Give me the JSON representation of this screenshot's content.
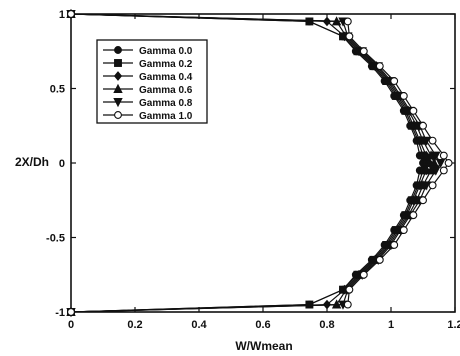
{
  "chart_data": {
    "type": "line",
    "xlabel": "W/Wmean",
    "ylabel": "2X/Dh",
    "xlim": [
      0,
      1.2
    ],
    "ylim": [
      -1,
      1
    ],
    "xticks": [
      "0",
      "0.2",
      "0.4",
      "0.6",
      "0.8",
      "1",
      "1.2"
    ],
    "yticks": [
      "1",
      "0.5",
      "0",
      "-0.5",
      "-1"
    ],
    "grid": false,
    "legend_position": "top-left",
    "y": [
      -1.0,
      -0.95,
      -0.85,
      -0.75,
      -0.65,
      -0.55,
      -0.45,
      -0.35,
      -0.25,
      -0.15,
      -0.05,
      0.0,
      0.05,
      0.15,
      0.25,
      0.35,
      0.45,
      0.55,
      0.65,
      0.75,
      0.85,
      0.95,
      1.0
    ],
    "series": [
      {
        "name": "Gamma 0.0",
        "marker": "circle-filled",
        "values": [
          0,
          0.745,
          0.85,
          0.89,
          0.94,
          0.98,
          1.01,
          1.04,
          1.06,
          1.08,
          1.09,
          1.1,
          1.09,
          1.08,
          1.06,
          1.04,
          1.01,
          0.98,
          0.94,
          0.89,
          0.85,
          0.745,
          0
        ]
      },
      {
        "name": "Gamma 0.2",
        "marker": "square-filled",
        "values": [
          0,
          0.745,
          0.85,
          0.895,
          0.945,
          0.985,
          1.015,
          1.045,
          1.065,
          1.085,
          1.1,
          1.11,
          1.1,
          1.085,
          1.065,
          1.045,
          1.015,
          0.985,
          0.945,
          0.895,
          0.85,
          0.745,
          0
        ]
      },
      {
        "name": "Gamma 0.4",
        "marker": "diamond-filled",
        "values": [
          0,
          0.8,
          0.855,
          0.9,
          0.95,
          0.99,
          1.02,
          1.05,
          1.07,
          1.09,
          1.11,
          1.12,
          1.11,
          1.09,
          1.07,
          1.05,
          1.02,
          0.99,
          0.95,
          0.9,
          0.855,
          0.8,
          0
        ]
      },
      {
        "name": "Gamma 0.6",
        "marker": "triangle-up-filled",
        "values": [
          0,
          0.83,
          0.86,
          0.905,
          0.955,
          0.995,
          1.025,
          1.055,
          1.08,
          1.1,
          1.125,
          1.135,
          1.125,
          1.1,
          1.08,
          1.055,
          1.025,
          0.995,
          0.955,
          0.905,
          0.86,
          0.83,
          0
        ]
      },
      {
        "name": "Gamma 0.8",
        "marker": "triangle-down-filled",
        "values": [
          0,
          0.85,
          0.865,
          0.91,
          0.96,
          1.0,
          1.03,
          1.06,
          1.09,
          1.11,
          1.14,
          1.155,
          1.14,
          1.11,
          1.09,
          1.06,
          1.03,
          1.0,
          0.96,
          0.91,
          0.865,
          0.85,
          0
        ]
      },
      {
        "name": "Gamma 1.0",
        "marker": "circle-open",
        "values": [
          0,
          0.865,
          0.87,
          0.915,
          0.965,
          1.01,
          1.04,
          1.07,
          1.1,
          1.13,
          1.165,
          1.18,
          1.165,
          1.13,
          1.1,
          1.07,
          1.04,
          1.01,
          0.965,
          0.915,
          0.87,
          0.865,
          0
        ]
      }
    ]
  }
}
